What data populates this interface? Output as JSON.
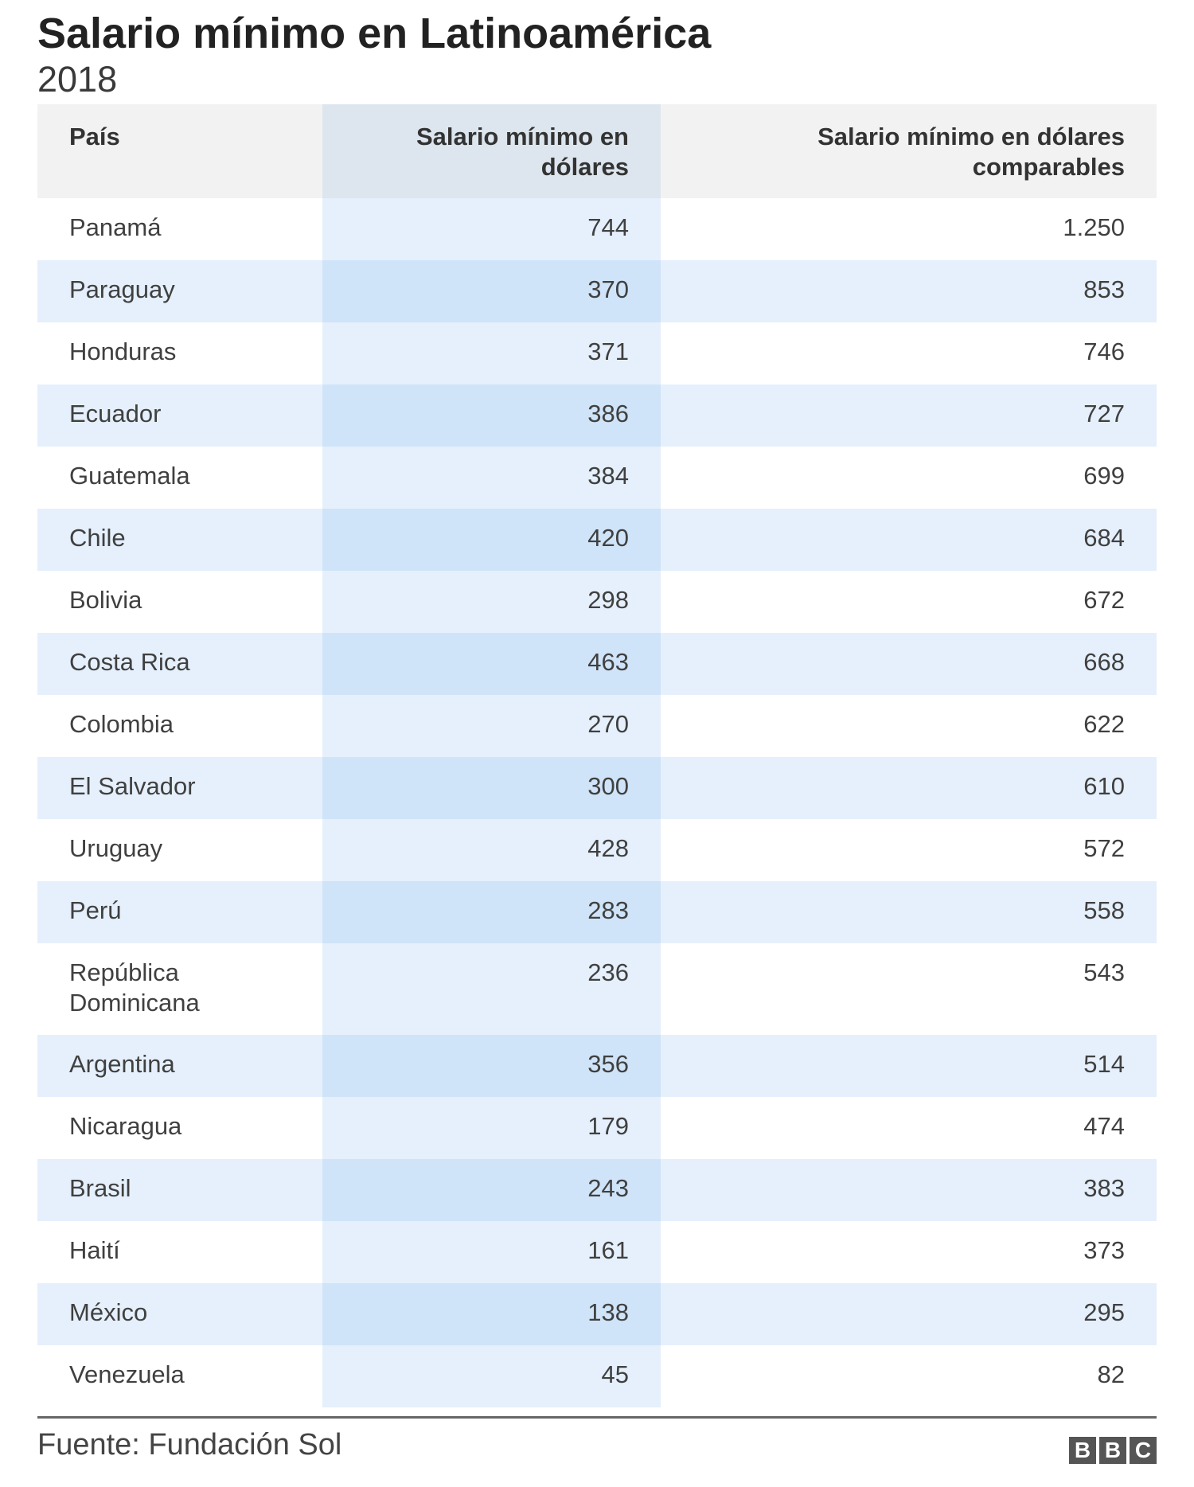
{
  "title": "Salario mínimo en Latinoamérica",
  "subtitle": "2018",
  "source": "Fuente: Fundación Sol",
  "logo": [
    "B",
    "B",
    "C"
  ],
  "chart_data": {
    "type": "table",
    "columns": [
      "País",
      "Salario mínimo en dólares",
      "Salario mínimo en dólares comparables"
    ],
    "rows": [
      {
        "country": "Panamá",
        "usd": "744",
        "comparable": "1.250"
      },
      {
        "country": "Paraguay",
        "usd": "370",
        "comparable": "853"
      },
      {
        "country": "Honduras",
        "usd": "371",
        "comparable": "746"
      },
      {
        "country": "Ecuador",
        "usd": "386",
        "comparable": "727"
      },
      {
        "country": "Guatemala",
        "usd": "384",
        "comparable": "699"
      },
      {
        "country": "Chile",
        "usd": "420",
        "comparable": "684"
      },
      {
        "country": "Bolivia",
        "usd": "298",
        "comparable": "672"
      },
      {
        "country": "Costa Rica",
        "usd": "463",
        "comparable": "668"
      },
      {
        "country": "Colombia",
        "usd": "270",
        "comparable": "622"
      },
      {
        "country": "El Salvador",
        "usd": "300",
        "comparable": "610"
      },
      {
        "country": "Uruguay",
        "usd": "428",
        "comparable": "572"
      },
      {
        "country": "Perú",
        "usd": "283",
        "comparable": "558"
      },
      {
        "country": "República Dominicana",
        "usd": "236",
        "comparable": "543"
      },
      {
        "country": "Argentina",
        "usd": "356",
        "comparable": "514"
      },
      {
        "country": "Nicaragua",
        "usd": "179",
        "comparable": "474"
      },
      {
        "country": "Brasil",
        "usd": "243",
        "comparable": "383"
      },
      {
        "country": "Haití",
        "usd": "161",
        "comparable": "373"
      },
      {
        "country": "México",
        "usd": "138",
        "comparable": "295"
      },
      {
        "country": "Venezuela",
        "usd": "45",
        "comparable": "82"
      }
    ]
  }
}
